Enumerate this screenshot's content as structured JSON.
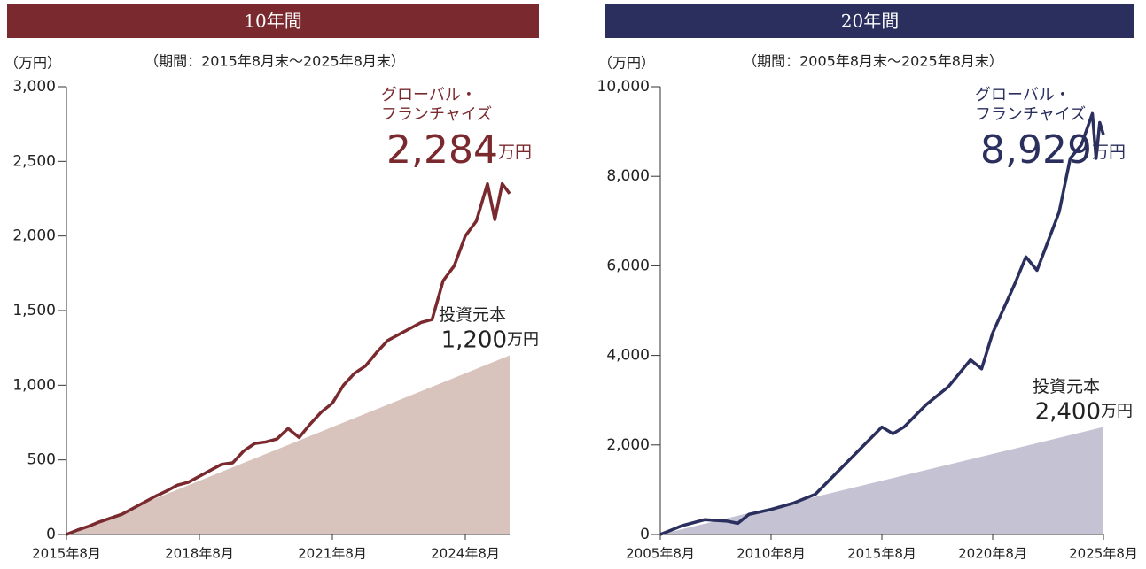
{
  "chart_data": [
    {
      "type": "line",
      "header": "10年間",
      "subtitle": "（期間：2015年8月末～2025年8月末）",
      "ylabel": "（万円）",
      "header_color": "#7a2a2e",
      "xlim": [
        "2015-08",
        "2025-08"
      ],
      "xticks": [
        {
          "value": "2015-08",
          "label": "2015年8月"
        },
        {
          "value": "2018-08",
          "label": "2018年8月"
        },
        {
          "value": "2021-08",
          "label": "2021年8月"
        },
        {
          "value": "2024-08",
          "label": "2024年8月"
        }
      ],
      "ylim": [
        0,
        3000
      ],
      "yticks": [
        0,
        500,
        {
          "value": 1000,
          "label": "1,000"
        },
        {
          "value": 1500,
          "label": "1,500"
        },
        {
          "value": 2000,
          "label": "2,000"
        },
        {
          "value": 2500,
          "label": "2,500"
        },
        {
          "value": 3000,
          "label": "3,000"
        }
      ],
      "unit": "万円",
      "series": [
        {
          "name_lines": [
            "グローバル・",
            "フランチャイズ"
          ],
          "color": "#7a2a2e",
          "end_label": "2,284",
          "x": [
            "2015-08",
            "2015-11",
            "2016-02",
            "2016-05",
            "2016-08",
            "2016-11",
            "2017-02",
            "2017-05",
            "2017-08",
            "2017-11",
            "2018-02",
            "2018-05",
            "2018-08",
            "2018-11",
            "2019-02",
            "2019-05",
            "2019-08",
            "2019-11",
            "2020-02",
            "2020-05",
            "2020-08",
            "2020-11",
            "2021-02",
            "2021-05",
            "2021-08",
            "2021-11",
            "2022-02",
            "2022-05",
            "2022-08",
            "2022-11",
            "2023-02",
            "2023-05",
            "2023-08",
            "2023-11",
            "2024-02",
            "2024-05",
            "2024-08",
            "2024-11",
            "2025-02",
            "2025-04",
            "2025-06",
            "2025-08"
          ],
          "values": [
            0,
            30,
            55,
            85,
            110,
            135,
            175,
            215,
            255,
            290,
            330,
            350,
            390,
            430,
            470,
            480,
            560,
            610,
            620,
            640,
            710,
            650,
            740,
            820,
            880,
            1000,
            1080,
            1130,
            1220,
            1300,
            1340,
            1380,
            1420,
            1440,
            1700,
            1800,
            2000,
            2100,
            2350,
            2110,
            2350,
            2284
          ]
        },
        {
          "type": "area",
          "name": "投資元本",
          "color": "#d9c3bd",
          "end_label": "1,200",
          "x": [
            "2015-08",
            "2025-08"
          ],
          "values": [
            0,
            1200
          ]
        }
      ]
    },
    {
      "type": "line",
      "header": "20年間",
      "subtitle": "（期間：2005年8月末～2025年8月末）",
      "ylabel": "（万円）",
      "header_color": "#2a2f5e",
      "xlim": [
        "2005-08",
        "2025-08"
      ],
      "xticks": [
        {
          "value": "2005-08",
          "label": "2005年8月"
        },
        {
          "value": "2010-08",
          "label": "2010年8月"
        },
        {
          "value": "2015-08",
          "label": "2015年8月"
        },
        {
          "value": "2020-08",
          "label": "2020年8月"
        },
        {
          "value": "2025-08",
          "label": "2025年8月"
        }
      ],
      "ylim": [
        0,
        10000
      ],
      "yticks": [
        0,
        {
          "value": 2000,
          "label": "2,000"
        },
        {
          "value": 4000,
          "label": "4,000"
        },
        {
          "value": 6000,
          "label": "6,000"
        },
        {
          "value": 8000,
          "label": "8,000"
        },
        {
          "value": 10000,
          "label": "10,000"
        }
      ],
      "unit": "万円",
      "series": [
        {
          "name_lines": [
            "グローバル・",
            "フランチャイズ"
          ],
          "color": "#2a2f5e",
          "end_label": "8,929",
          "x": [
            "2005-08",
            "2006-08",
            "2007-08",
            "2008-08",
            "2009-02",
            "2009-08",
            "2010-08",
            "2011-08",
            "2012-08",
            "2013-08",
            "2014-08",
            "2015-08",
            "2016-02",
            "2016-08",
            "2017-08",
            "2018-08",
            "2019-08",
            "2020-02",
            "2020-08",
            "2021-08",
            "2022-02",
            "2022-08",
            "2023-08",
            "2024-02",
            "2024-08",
            "2025-02",
            "2025-04",
            "2025-06",
            "2025-08"
          ],
          "values": [
            0,
            200,
            330,
            300,
            250,
            450,
            560,
            700,
            900,
            1400,
            1900,
            2400,
            2250,
            2400,
            2900,
            3300,
            3900,
            3700,
            4500,
            5600,
            6200,
            5900,
            7200,
            8400,
            8700,
            9400,
            8400,
            9200,
            8929
          ]
        },
        {
          "type": "area",
          "name": "投資元本",
          "color": "#c5c3d3",
          "end_label": "2,400",
          "x": [
            "2005-08",
            "2025-08"
          ],
          "values": [
            0,
            2400
          ]
        }
      ]
    }
  ]
}
